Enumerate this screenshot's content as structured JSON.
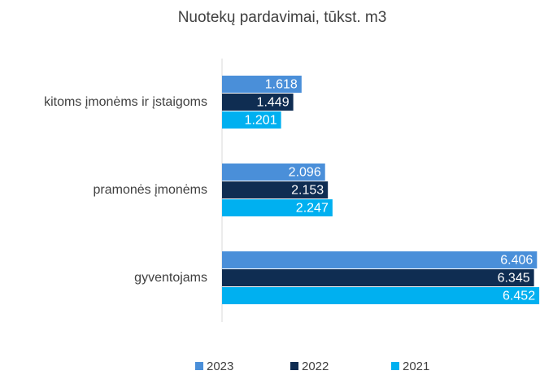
{
  "chart_data": {
    "type": "hbar",
    "title": "Nuotekų pardavimai, tūkst. m3",
    "categories": [
      "kitoms įmonėms ir įstaigoms",
      "pramonės įmonėms",
      "gyventojams"
    ],
    "series": [
      {
        "name": "2023",
        "color": "#4a8fd9",
        "values": [
          1.618,
          2.096,
          6.406
        ]
      },
      {
        "name": "2022",
        "color": "#0f2d52",
        "values": [
          1.449,
          2.153,
          6.345
        ]
      },
      {
        "name": "2021",
        "color": "#00b0f0",
        "values": [
          1.201,
          2.247,
          6.452
        ]
      }
    ],
    "xlim": [
      0,
      6.5
    ],
    "legend": "bottom"
  }
}
